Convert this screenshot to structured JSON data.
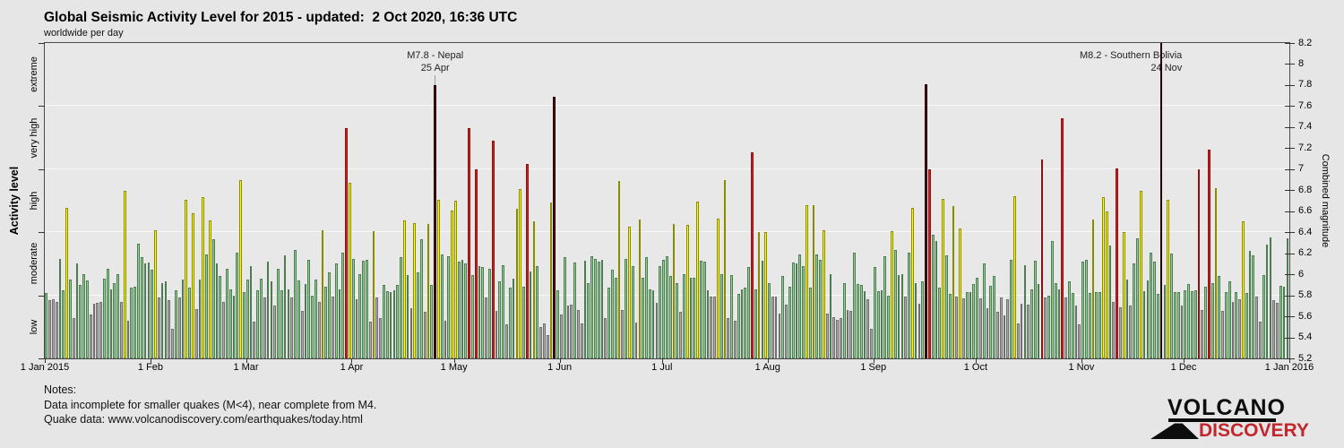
{
  "header": {
    "title": "Global Seismic Activity Level for 2015 - updated:  2 Oct 2020, 16:36 UTC",
    "subtitle": "worldwide per day"
  },
  "notes": {
    "heading": "Notes:",
    "line1": "Data incomplete for smaller quakes (M<4), near complete from M4.",
    "line2": "Quake data: www.volcanodiscovery.com/earthquakes/today.html"
  },
  "logo": {
    "volcano": "VOLCANO",
    "discovery": "DISCOVERY",
    "discovery_color": "#c1272d"
  },
  "chart_data": {
    "type": "bar",
    "title": "Global Seismic Activity Level for 2015",
    "subtitle": "worldwide per day",
    "grid": "horizontal lines at activity-level band boundaries",
    "legend_position": "none",
    "y_left": {
      "label": "Activity level",
      "bands": [
        "low",
        "moderate",
        "high",
        "very high",
        "extreme"
      ],
      "band_boundaries": [
        5.8,
        6.4,
        7.0,
        7.6
      ]
    },
    "y_right": {
      "label": "Combined magnitude",
      "min": 5.2,
      "max": 8.2,
      "tick_step": 0.2,
      "tick_labels": [
        "5.2",
        "5.4",
        "5.6",
        "5.8",
        "6",
        "6.2",
        "6.4",
        "6.6",
        "6.8",
        "7",
        "7.2",
        "7.4",
        "7.6",
        "7.8",
        "8",
        "8.2"
      ]
    },
    "x": {
      "label": "",
      "tick_labels": [
        "1 Jan 2015",
        "1 Feb",
        "1 Mar",
        "1 Apr",
        "1 May",
        "1 Jun",
        "1 Jul",
        "1 Aug",
        "1 Sep",
        "1 Oct",
        "1 Nov",
        "1 Dec",
        "1 Jan 2016"
      ],
      "tick_days": [
        0,
        31,
        59,
        90,
        120,
        151,
        181,
        212,
        243,
        273,
        304,
        334,
        365
      ]
    },
    "colors": [
      {
        "band": "low",
        "fill": "#ababab",
        "edge": "#6f6f6f"
      },
      {
        "band": "moderate",
        "fill": "#8fd190",
        "edge": "#4f7b52"
      },
      {
        "band": "high",
        "fill": "#ffff05",
        "edge": "#8b8b00"
      },
      {
        "band": "very high",
        "fill": "#d22222",
        "edge": "#8c1010"
      },
      {
        "band": "extreme",
        "fill": "#581010",
        "edge": "#200202"
      }
    ],
    "annotations": [
      {
        "label": "M7.8 - Nepal",
        "date": "25 Apr",
        "day_index": 114,
        "align": "center",
        "leader": true
      },
      {
        "label": "M8.2 - Southern Bolivia",
        "date": "24 Nov",
        "day_index": 327,
        "align": "right",
        "leader": false
      }
    ],
    "values": [
      5.82,
      5.75,
      5.76,
      5.74,
      6.15,
      5.85,
      6.63,
      5.95,
      5.58,
      6.1,
      5.9,
      6.0,
      5.94,
      5.62,
      5.72,
      5.73,
      5.74,
      5.96,
      6.05,
      5.86,
      5.92,
      6.0,
      5.74,
      6.79,
      5.56,
      5.87,
      5.88,
      6.29,
      6.16,
      6.1,
      6.11,
      6.04,
      6.42,
      5.78,
      5.92,
      5.93,
      5.75,
      5.48,
      5.85,
      5.78,
      5.95,
      6.71,
      5.87,
      6.58,
      5.67,
      5.95,
      6.73,
      6.19,
      6.51,
      6.33,
      6.1,
      5.98,
      5.74,
      6.05,
      5.86,
      5.8,
      6.21,
      6.9,
      5.83,
      5.95,
      6.08,
      5.55,
      5.85,
      5.96,
      5.78,
      6.12,
      5.93,
      5.7,
      6.05,
      5.85,
      6.18,
      5.86,
      5.78,
      6.23,
      5.94,
      5.65,
      5.91,
      6.14,
      5.8,
      5.95,
      5.74,
      6.42,
      5.88,
      6.02,
      5.79,
      6.1,
      5.86,
      6.21,
      7.39,
      6.87,
      6.15,
      5.76,
      6.0,
      6.13,
      6.14,
      5.55,
      6.41,
      5.78,
      5.58,
      5.9,
      5.84,
      5.83,
      5.85,
      5.9,
      6.16,
      6.51,
      5.99,
      5.68,
      6.49,
      6.02,
      6.33,
      5.64,
      6.48,
      5.9,
      7.8,
      6.71,
      6.19,
      5.56,
      6.17,
      6.61,
      6.7,
      6.12,
      6.14,
      6.1,
      7.39,
      5.99,
      7.0,
      6.08,
      6.07,
      5.78,
      6.05,
      7.27,
      5.65,
      5.93,
      6.09,
      5.52,
      5.87,
      5.96,
      6.62,
      6.81,
      5.88,
      7.05,
      6.03,
      6.5,
      6.08,
      5.5,
      5.53,
      5.42,
      6.68,
      7.69,
      5.85,
      5.62,
      6.16,
      5.7,
      5.71,
      6.11,
      5.66,
      5.53,
      6.13,
      5.92,
      6.17,
      6.15,
      6.12,
      6.14,
      5.58,
      5.87,
      6.04,
      5.97,
      6.89,
      5.66,
      6.15,
      6.45,
      6.08,
      5.54,
      6.52,
      5.97,
      6.16,
      5.86,
      5.85,
      5.73,
      6.08,
      6.14,
      6.17,
      5.98,
      6.48,
      5.92,
      5.64,
      6.0,
      6.47,
      5.97,
      5.97,
      6.69,
      6.13,
      6.12,
      5.85,
      5.79,
      5.79,
      6.53,
      6.0,
      6.9,
      5.58,
      5.99,
      5.56,
      5.81,
      5.86,
      5.87,
      6.07,
      7.16,
      5.86,
      6.4,
      6.13,
      6.4,
      5.92,
      5.79,
      5.79,
      5.63,
      5.98,
      5.71,
      5.88,
      6.11,
      6.1,
      6.19,
      6.08,
      6.66,
      5.87,
      6.66,
      6.19,
      6.14,
      6.42,
      5.63,
      6.0,
      5.59,
      5.57,
      5.58,
      5.92,
      5.66,
      5.65,
      6.21,
      5.91,
      5.9,
      5.84,
      5.76,
      5.48,
      6.07,
      5.84,
      5.85,
      6.17,
      5.8,
      6.41,
      6.23,
      5.99,
      6.0,
      5.79,
      6.21,
      6.63,
      5.92,
      5.72,
      5.93,
      7.81,
      7.0,
      6.38,
      6.32,
      5.87,
      6.72,
      6.18,
      5.81,
      6.65,
      5.79,
      6.44,
      5.77,
      5.83,
      5.83,
      5.91,
      5.97,
      5.77,
      6.1,
      5.68,
      5.89,
      5.98,
      5.64,
      5.78,
      5.61,
      5.76,
      6.14,
      6.74,
      5.53,
      5.72,
      6.09,
      5.71,
      5.86,
      6.13,
      5.91,
      7.09,
      5.78,
      5.8,
      6.32,
      5.92,
      5.86,
      7.48,
      5.78,
      5.93,
      5.82,
      5.7,
      5.52,
      6.12,
      6.14,
      5.82,
      6.52,
      5.83,
      5.83,
      6.73,
      6.6,
      6.27,
      5.74,
      7.01,
      5.69,
      6.4,
      5.95,
      5.7,
      6.1,
      6.34,
      6.79,
      5.84,
      5.94,
      6.21,
      6.12,
      5.81,
      8.2,
      5.9,
      6.71,
      6.2,
      5.83,
      5.83,
      5.7,
      5.85,
      5.91,
      5.84,
      5.85,
      7.0,
      5.66,
      5.88,
      7.19,
      5.92,
      6.82,
      5.98,
      5.65,
      5.83,
      5.93,
      5.74,
      5.83,
      5.76,
      6.5,
      5.82,
      6.22,
      6.18,
      5.79,
      5.55,
      5.99,
      6.28,
      6.35,
      5.75,
      5.73,
      5.89,
      5.88,
      6.34
    ]
  }
}
